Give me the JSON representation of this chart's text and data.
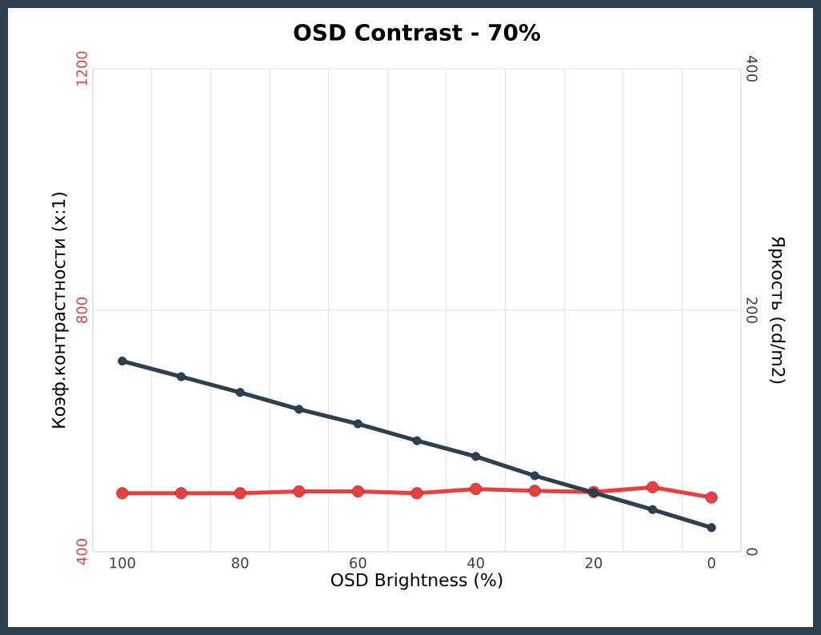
{
  "chart_data": {
    "type": "line",
    "title": "OSD Contrast - 70%",
    "xlabel": "OSD Brightness (%)",
    "ylabel": "Коэф.контрастности (x:1)",
    "y2label": "Яркость (cd/m2)",
    "categories": [
      "100",
      null,
      "80",
      null,
      "60",
      null,
      "40",
      null,
      "20",
      null,
      "0"
    ],
    "ylim": [
      400,
      1200
    ],
    "yticks": [
      400,
      800,
      1200
    ],
    "y2lim": [
      0,
      400
    ],
    "y2ticks": [
      0,
      200,
      400
    ],
    "grid": true,
    "marker": "circle",
    "line_style": "solid",
    "series": [
      {
        "color": "#e84040",
        "values": [
          497,
          497,
          497,
          500,
          500,
          497,
          504,
          501,
          499,
          507,
          490
        ]
      },
      {
        "color": "#2e4050",
        "axis": "y2",
        "values": [
          158,
          145,
          132,
          118,
          106,
          92,
          79,
          63,
          49,
          35,
          20
        ]
      }
    ]
  }
}
